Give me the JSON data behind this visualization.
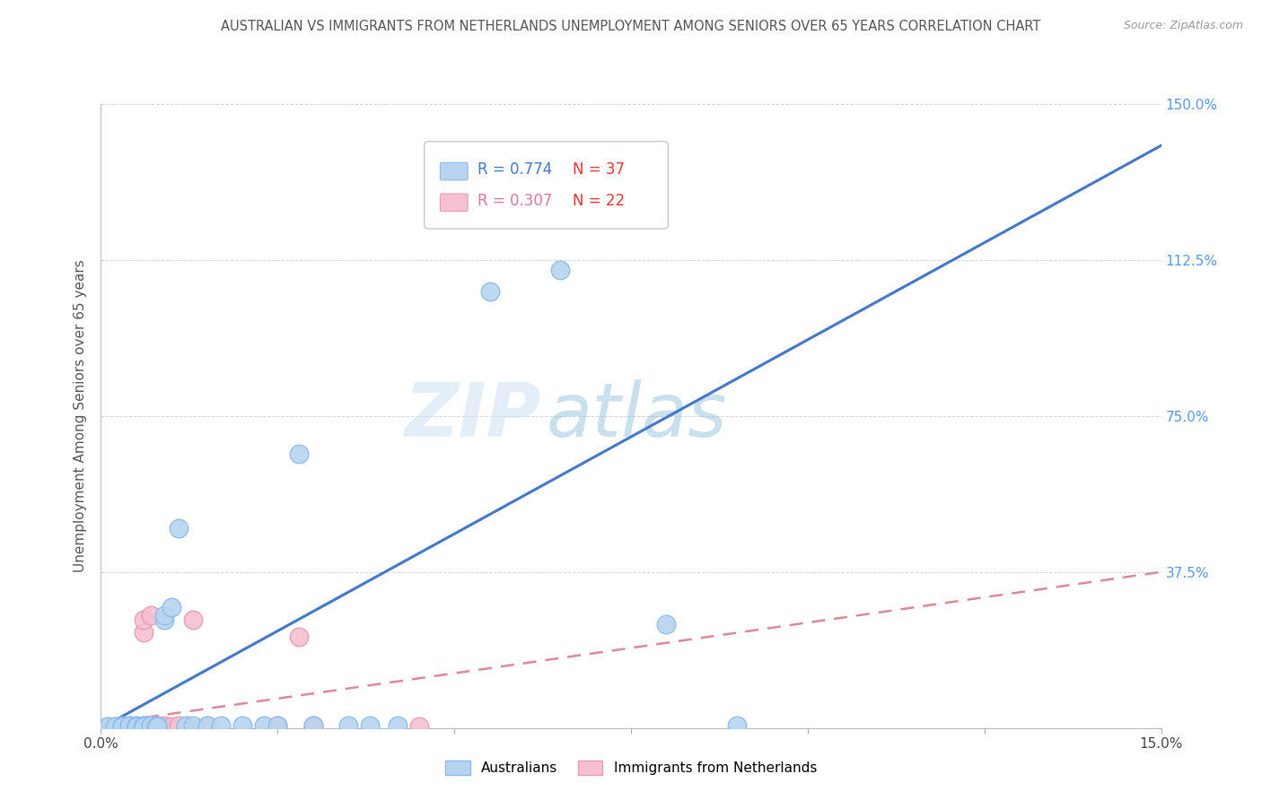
{
  "title": "AUSTRALIAN VS IMMIGRANTS FROM NETHERLANDS UNEMPLOYMENT AMONG SENIORS OVER 65 YEARS CORRELATION CHART",
  "source": "Source: ZipAtlas.com",
  "ylabel": "Unemployment Among Seniors over 65 years",
  "xlim": [
    0,
    0.15
  ],
  "ylim": [
    0,
    1.5
  ],
  "xticks": [
    0.0,
    0.025,
    0.05,
    0.075,
    0.1,
    0.125,
    0.15
  ],
  "xticklabels": [
    "0.0%",
    "",
    "",
    "",
    "",
    "",
    "15.0%"
  ],
  "yticks": [
    0.0,
    0.375,
    0.75,
    1.125,
    1.5
  ],
  "yticklabels_right": [
    "",
    "37.5%",
    "75.0%",
    "112.5%",
    "150.0%"
  ],
  "background_color": "#ffffff",
  "grid_color": "#cccccc",
  "watermark_zip": "ZIP",
  "watermark_atlas": "atlas",
  "legend_r1": "R = 0.774",
  "legend_n1": "N = 37",
  "legend_r2": "R = 0.307",
  "legend_n2": "N = 22",
  "aus_color": "#b8d4f0",
  "aus_edge_color": "#88bbee",
  "neth_color": "#f5c0d0",
  "neth_edge_color": "#e899b4",
  "trend_aus_color": "#4477cc",
  "trend_neth_color": "#dd8899",
  "aus_scatter_x": [
    0.001,
    0.002,
    0.003,
    0.003,
    0.004,
    0.004,
    0.005,
    0.005,
    0.005,
    0.006,
    0.006,
    0.006,
    0.007,
    0.007,
    0.008,
    0.008,
    0.008,
    0.009,
    0.009,
    0.01,
    0.011,
    0.012,
    0.013,
    0.015,
    0.017,
    0.02,
    0.023,
    0.025,
    0.028,
    0.03,
    0.035,
    0.038,
    0.042,
    0.055,
    0.065,
    0.08,
    0.09
  ],
  "aus_scatter_y": [
    0.004,
    0.003,
    0.005,
    0.004,
    0.005,
    0.006,
    0.003,
    0.005,
    0.004,
    0.006,
    0.005,
    0.004,
    0.005,
    0.005,
    0.004,
    0.005,
    0.003,
    0.26,
    0.27,
    0.29,
    0.48,
    0.005,
    0.005,
    0.005,
    0.005,
    0.005,
    0.005,
    0.005,
    0.66,
    0.005,
    0.005,
    0.005,
    0.005,
    1.05,
    1.1,
    0.25,
    0.005
  ],
  "neth_scatter_x": [
    0.001,
    0.002,
    0.003,
    0.004,
    0.005,
    0.005,
    0.006,
    0.006,
    0.007,
    0.007,
    0.008,
    0.008,
    0.009,
    0.01,
    0.011,
    0.012,
    0.013,
    0.015,
    0.025,
    0.028,
    0.03,
    0.045
  ],
  "neth_scatter_y": [
    0.004,
    0.003,
    0.004,
    0.003,
    0.004,
    0.005,
    0.23,
    0.26,
    0.005,
    0.27,
    0.004,
    0.005,
    0.005,
    0.004,
    0.005,
    0.003,
    0.26,
    0.005,
    0.005,
    0.22,
    0.005,
    0.003
  ],
  "trend_aus_x0": 0.0,
  "trend_aus_y0": 0.0,
  "trend_aus_x1": 0.15,
  "trend_aus_y1": 1.4,
  "trend_neth_x0": 0.0,
  "trend_neth_y0": 0.01,
  "trend_neth_x1": 0.15,
  "trend_neth_y1": 0.375
}
